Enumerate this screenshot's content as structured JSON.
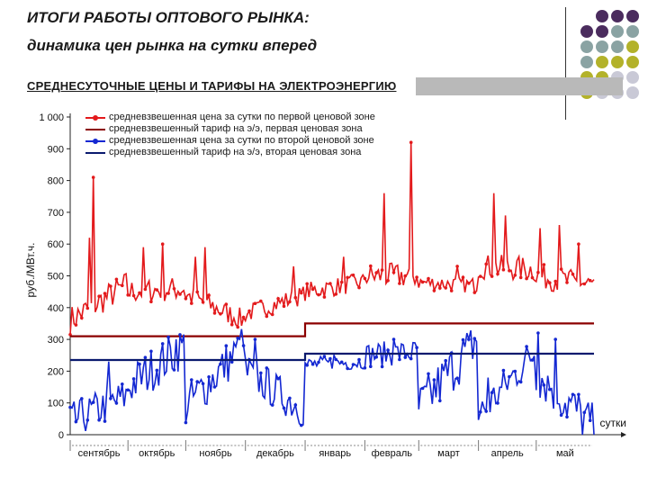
{
  "header": {
    "title_line1": "ИТОГИ РАБОТЫ  ОПТОВОГО РЫНКА:",
    "title_line2": "динамика цен рынка на сутки вперед",
    "banner": "СРЕДНЕСУТОЧНЫЕ ЦЕНЫ И ТАРИФЫ НА ЭЛЕКТРОЭНЕРГИЮ"
  },
  "colors": {
    "price_zone1": "#e31a1c",
    "tariff_zone1": "#8b0000",
    "price_zone2": "#1428d2",
    "tariff_zone2": "#0a1a6e",
    "dots": [
      "#4b2c5e",
      "#8aa3a3",
      "#b3b22a",
      "#c9c9d6"
    ]
  },
  "chart_data": {
    "type": "line",
    "title": "СРЕДНЕСУТОЧНЫЕ ЦЕНЫ И ТАРИФЫ НА ЭЛЕКТРОЭНЕРГИЮ",
    "ylabel": "руб./МВт.ч.",
    "xlabel": "сутки",
    "ylim": [
      0,
      1000
    ],
    "yticks": [
      0,
      100,
      200,
      300,
      400,
      500,
      600,
      700,
      800,
      900,
      1000
    ],
    "ytick_labels": [
      "0",
      "100",
      "200",
      "300",
      "400",
      "500",
      "600",
      "700",
      "800",
      "900",
      "1 000"
    ],
    "months": [
      "сентябрь",
      "октябрь",
      "ноябрь",
      "декабрь",
      "январь",
      "февраль",
      "март",
      "апрель",
      "май"
    ],
    "legend_position": "top-left",
    "grid": false,
    "x_days": 273,
    "series": [
      {
        "name": "средневзвешенная цена за сутки по первой ценовой зоне",
        "kind": "price_zone1",
        "segments": [
          {
            "start": 1,
            "base": 360,
            "end": 470,
            "amp": 45,
            "peaks": [
              [
                12,
                810
              ],
              [
                10,
                620
              ]
            ]
          },
          {
            "start": 31,
            "base": 450,
            "end": 460,
            "amp": 40,
            "peaks": [
              [
                18,
                600
              ],
              [
                8,
                590
              ]
            ]
          },
          {
            "start": 61,
            "base": 440,
            "end": 360,
            "amp": 35,
            "peaks": [
              [
                10,
                590
              ],
              [
                5,
                560
              ]
            ]
          },
          {
            "start": 92,
            "base": 380,
            "end": 440,
            "amp": 30,
            "peaks": [
              [
                25,
                530
              ]
            ]
          },
          {
            "start": 123,
            "base": 450,
            "end": 480,
            "amp": 30,
            "peaks": [
              [
                20,
                560
              ]
            ]
          },
          {
            "start": 154,
            "base": 500,
            "end": 500,
            "amp": 40,
            "peaks": [
              [
                10,
                760
              ],
              [
                24,
                920
              ]
            ]
          },
          {
            "start": 182,
            "base": 480,
            "end": 470,
            "amp": 25,
            "peaks": [
              [
                20,
                530
              ]
            ]
          },
          {
            "start": 213,
            "base": 530,
            "end": 520,
            "amp": 40,
            "peaks": [
              [
                8,
                760
              ],
              [
                14,
                690
              ]
            ]
          },
          {
            "start": 243,
            "base": 500,
            "end": 470,
            "amp": 40,
            "peaks": [
              [
                2,
                650
              ],
              [
                12,
                660
              ],
              [
                22,
                600
              ]
            ]
          }
        ]
      },
      {
        "name": "средневзвешенный тариф на э/э, первая ценовая зона",
        "kind": "tariff_zone1",
        "steps": [
          [
            1,
            310
          ],
          [
            123,
            310
          ],
          [
            123,
            350
          ],
          [
            273,
            350
          ]
        ]
      },
      {
        "name": "средневзвешенная цена за сутки по второй ценовой зоне",
        "kind": "price_zone2",
        "segments": [
          {
            "start": 1,
            "base": 40,
            "end": 120,
            "amp": 60,
            "peaks": [
              [
                20,
                230
              ]
            ]
          },
          {
            "start": 31,
            "base": 150,
            "end": 280,
            "amp": 70,
            "peaks": [
              [
                25,
                300
              ]
            ]
          },
          {
            "start": 61,
            "base": 90,
            "end": 280,
            "amp": 70,
            "peaks": [
              [
                28,
                300
              ]
            ]
          },
          {
            "start": 92,
            "base": 200,
            "end": 80,
            "amp": 60,
            "peaks": [
              [
                5,
                300
              ]
            ]
          },
          {
            "start": 123,
            "base": 220,
            "end": 230,
            "amp": 25,
            "peaks": [
              [
                15,
                250
              ]
            ]
          },
          {
            "start": 154,
            "base": 250,
            "end": 260,
            "amp": 40,
            "peaks": [
              [
                15,
                300
              ]
            ]
          },
          {
            "start": 182,
            "base": 80,
            "end": 300,
            "amp": 80,
            "peaks": [
              [
                26,
                300
              ]
            ]
          },
          {
            "start": 213,
            "base": 60,
            "end": 260,
            "amp": 60,
            "peaks": [
              [
                5,
                180
              ]
            ]
          },
          {
            "start": 243,
            "base": 200,
            "end": 20,
            "amp": 80,
            "peaks": [
              [
                1,
                320
              ],
              [
                10,
                300
              ]
            ]
          }
        ]
      },
      {
        "name": "средневзвешенный тариф на э/э, вторая ценовая зона",
        "kind": "tariff_zone2",
        "steps": [
          [
            1,
            235
          ],
          [
            123,
            235
          ],
          [
            123,
            255
          ],
          [
            273,
            255
          ]
        ]
      }
    ]
  }
}
